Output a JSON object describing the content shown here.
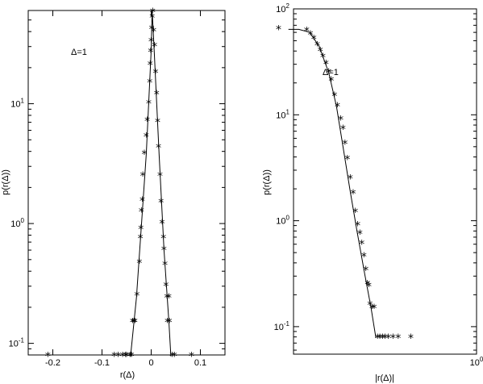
{
  "chart_data": [
    {
      "type": "scatter",
      "xlabel": "r(Δ)",
      "ylabel": "p(r(Δ))",
      "annotation": "Δ=1",
      "xlim": [
        -0.25,
        0.15
      ],
      "ylim": [
        0.08,
        60
      ],
      "yscale": "log",
      "x_ticks": [
        "-0.2",
        "-0.1",
        "0",
        "0.1"
      ],
      "x_tick_values": [
        -0.2,
        -0.1,
        0,
        0.1
      ],
      "y_ticks": [
        {
          "base": "10",
          "exp": "-1",
          "value": 0.1
        },
        {
          "base": "10",
          "exp": "0",
          "value": 1
        },
        {
          "base": "10",
          "exp": "1",
          "value": 10
        }
      ],
      "series": [
        {
          "points": [
            [
              -0.21,
              0.078
            ],
            [
              -0.075,
              0.078
            ],
            [
              -0.067,
              0.078
            ],
            [
              -0.058,
              0.078
            ],
            [
              -0.052,
              0.078
            ],
            [
              -0.05,
              0.078
            ],
            [
              -0.043,
              0.078
            ],
            [
              -0.04,
              0.078
            ],
            [
              -0.038,
              0.15
            ],
            [
              -0.035,
              0.15
            ],
            [
              -0.033,
              0.15
            ],
            [
              -0.029,
              0.25
            ],
            [
              -0.024,
              0.47
            ],
            [
              -0.022,
              0.75
            ],
            [
              -0.021,
              0.9
            ],
            [
              -0.02,
              1.25
            ],
            [
              -0.018,
              1.55
            ],
            [
              -0.017,
              2.5
            ],
            [
              -0.014,
              3.8
            ],
            [
              -0.01,
              5.3
            ],
            [
              -0.008,
              7.2
            ],
            [
              -0.005,
              10
            ],
            [
              -0.003,
              15
            ],
            [
              -0.002,
              21
            ],
            [
              -0.001,
              27
            ],
            [
              0,
              33
            ],
            [
              0.001,
              42
            ],
            [
              0.002,
              52
            ],
            [
              0.003,
              58
            ],
            [
              0.005,
              40
            ],
            [
              0.007,
              30
            ],
            [
              0.009,
              18
            ],
            [
              0.011,
              12
            ],
            [
              0.013,
              7
            ],
            [
              0.015,
              4.3
            ],
            [
              0.018,
              2.5
            ],
            [
              0.02,
              1.5
            ],
            [
              0.022,
              1.0
            ],
            [
              0.025,
              0.75
            ],
            [
              0.026,
              0.6
            ],
            [
              0.028,
              0.45
            ],
            [
              0.03,
              0.3
            ],
            [
              0.032,
              0.24
            ],
            [
              0.036,
              0.24
            ],
            [
              0.033,
              0.15
            ],
            [
              0.037,
              0.15
            ],
            [
              0.043,
              0.078
            ],
            [
              0.047,
              0.078
            ],
            [
              0.082,
              0.078
            ]
          ]
        }
      ],
      "fit_line": [
        [
          -0.042,
          0.078
        ],
        [
          -0.03,
          0.24
        ],
        [
          -0.02,
          0.95
        ],
        [
          -0.01,
          3.8
        ],
        [
          0,
          28
        ],
        [
          0.002,
          60
        ],
        [
          0.006,
          28
        ],
        [
          0.016,
          3.8
        ],
        [
          0.026,
          0.6
        ],
        [
          0.036,
          0.15
        ],
        [
          0.04,
          0.078
        ]
      ]
    },
    {
      "type": "scatter",
      "xlabel": "|r(Δ)|",
      "ylabel": "p(r(Δ))",
      "annotation": "Δ=1",
      "ylim": [
        0.055,
        100
      ],
      "yscale": "log",
      "xscale": "log",
      "x_ticks": [
        {
          "base": "10",
          "exp": "0",
          "value": 1
        }
      ],
      "y_ticks": [
        {
          "base": "10",
          "exp": "-1",
          "value": 0.1
        },
        {
          "base": "10",
          "exp": "0",
          "value": 1
        },
        {
          "base": "10",
          "exp": "1",
          "value": 10
        },
        {
          "base": "10",
          "exp": "2",
          "value": 100
        }
      ],
      "series": [
        {
          "points": [
            [
              0.00021,
              64
            ],
            [
              0.0007,
              62
            ],
            [
              0.00082,
              57
            ],
            [
              0.00095,
              52
            ],
            [
              0.0011,
              45
            ],
            [
              0.00125,
              40
            ],
            [
              0.0014,
              35
            ],
            [
              0.0016,
              30
            ],
            [
              0.0018,
              25
            ],
            [
              0.002,
              21
            ],
            [
              0.0023,
              15
            ],
            [
              0.0026,
              12
            ],
            [
              0.003,
              9
            ],
            [
              0.0033,
              7.3
            ],
            [
              0.0036,
              5.3
            ],
            [
              0.004,
              3.8
            ],
            [
              0.0045,
              2.5
            ],
            [
              0.0051,
              1.8
            ],
            [
              0.0056,
              1.2
            ],
            [
              0.0062,
              0.9
            ],
            [
              0.0068,
              0.75
            ],
            [
              0.0074,
              0.6
            ],
            [
              0.0081,
              0.46
            ],
            [
              0.0088,
              0.34
            ],
            [
              0.0094,
              0.25
            ],
            [
              0.01,
              0.24
            ],
            [
              0.0105,
              0.16
            ],
            [
              0.0115,
              0.15
            ],
            [
              0.0125,
              0.15
            ],
            [
              0.0145,
              0.078
            ],
            [
              0.016,
              0.078
            ],
            [
              0.018,
              0.078
            ],
            [
              0.02,
              0.078
            ],
            [
              0.023,
              0.078
            ],
            [
              0.028,
              0.078
            ],
            [
              0.035,
              0.078
            ],
            [
              0.06,
              0.078
            ]
          ]
        }
      ],
      "fit_line": [
        [
          0.00032,
          64
        ],
        [
          0.0005,
          64
        ],
        [
          0.0008,
          60
        ],
        [
          0.0012,
          44
        ],
        [
          0.0018,
          25
        ],
        [
          0.0025,
          12
        ],
        [
          0.0035,
          4.2
        ],
        [
          0.0045,
          1.9
        ],
        [
          0.006,
          0.8
        ],
        [
          0.0085,
          0.3
        ],
        [
          0.011,
          0.15
        ],
        [
          0.0135,
          0.078
        ]
      ]
    }
  ]
}
